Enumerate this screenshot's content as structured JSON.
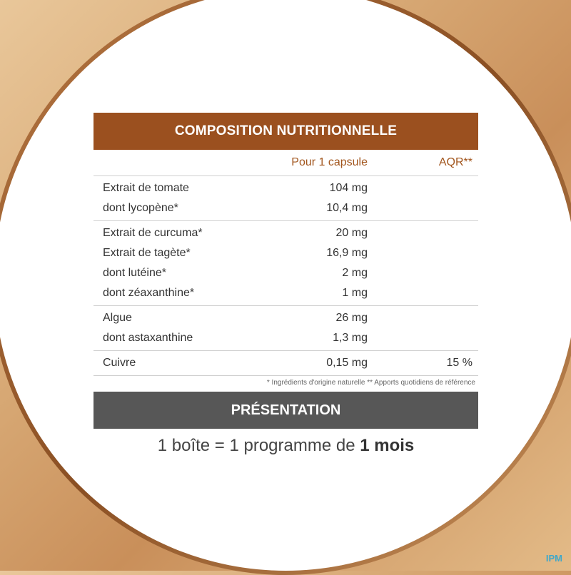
{
  "composition": {
    "title": "COMPOSITION NUTRITIONNELLE",
    "col_per": "Pour 1 capsule",
    "col_aqr": "AQR**",
    "groups": [
      [
        {
          "name": "Extrait de tomate",
          "amount": "104 mg",
          "aqr": ""
        },
        {
          "name": "dont lycopène*",
          "amount": "10,4 mg",
          "aqr": ""
        }
      ],
      [
        {
          "name": "Extrait de curcuma*",
          "amount": "20 mg",
          "aqr": ""
        },
        {
          "name": "Extrait de tagète*",
          "amount": "16,9 mg",
          "aqr": ""
        },
        {
          "name": "dont lutéine*",
          "amount": "2 mg",
          "aqr": ""
        },
        {
          "name": "dont zéaxanthine*",
          "amount": "1 mg",
          "aqr": ""
        }
      ],
      [
        {
          "name": "Algue",
          "amount": "26 mg",
          "aqr": ""
        },
        {
          "name": "dont astaxanthine",
          "amount": "1,3 mg",
          "aqr": ""
        }
      ],
      [
        {
          "name": "Cuivre",
          "amount": "0,15 mg",
          "aqr": "15 %"
        }
      ]
    ],
    "footnote": "* Ingrédients d'origine naturelle ** Apports quotidiens de référence"
  },
  "presentation": {
    "title": "PRÉSENTATION",
    "text_prefix": "1 boîte = 1 programme de ",
    "text_bold": "1 mois"
  },
  "logo": "IPM",
  "colors": {
    "header": "#9b501f",
    "presentation_bar": "#575757",
    "accent": "#a2561e"
  }
}
